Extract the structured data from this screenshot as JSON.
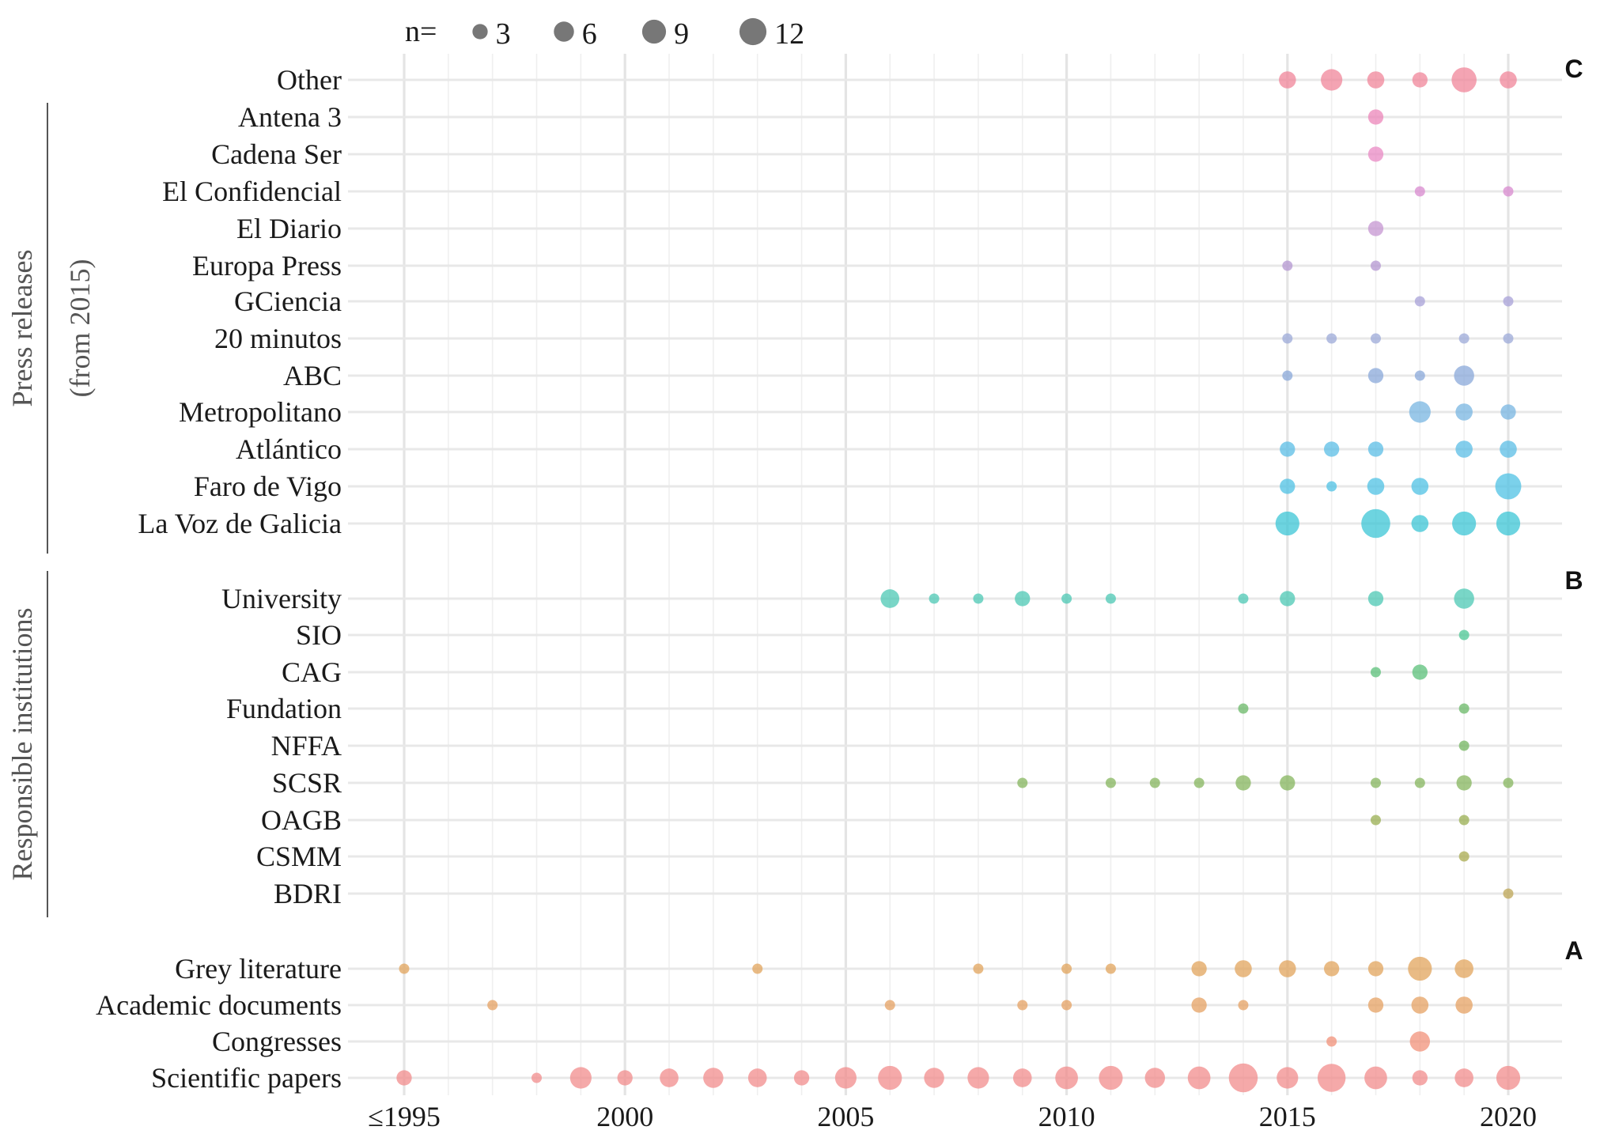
{
  "chart_data": {
    "type": "scatter",
    "subtype": "bubble",
    "legend": {
      "prefix": "n=",
      "sizes": [
        3,
        6,
        9,
        12
      ],
      "placement": "top-left"
    },
    "x_ticks": [
      {
        "value": 1995,
        "label": "≤1995"
      },
      {
        "value": 2000,
        "label": "2000"
      },
      {
        "value": 2005,
        "label": "2005"
      },
      {
        "value": 2010,
        "label": "2010"
      },
      {
        "value": 2015,
        "label": "2015"
      },
      {
        "value": 2020,
        "label": "2020"
      }
    ],
    "xlim": [
      1995,
      2020
    ],
    "grid": true,
    "groups": [
      {
        "name": "Press releases",
        "subtitle": "(from 2015)",
        "panel": "C"
      },
      {
        "name": "Responsible institutions",
        "subtitle": "",
        "panel": "B"
      },
      {
        "name": "",
        "subtitle": "",
        "panel": "A"
      }
    ],
    "series": [
      {
        "name": "Other",
        "group": 0,
        "color": "#f0869a",
        "points": [
          [
            2015,
            4
          ],
          [
            2016,
            7
          ],
          [
            2017,
            4
          ],
          [
            2018,
            3
          ],
          [
            2019,
            10
          ],
          [
            2020,
            4
          ]
        ]
      },
      {
        "name": "Antena 3",
        "group": 0,
        "color": "#ec86b9",
        "points": [
          [
            2017,
            3
          ]
        ]
      },
      {
        "name": "Cadena Ser",
        "group": 0,
        "color": "#e98ac4",
        "points": [
          [
            2017,
            3
          ]
        ]
      },
      {
        "name": "El Confidencial",
        "group": 0,
        "color": "#d889cf",
        "points": [
          [
            2018,
            1
          ],
          [
            2020,
            1
          ]
        ]
      },
      {
        "name": "El Diario",
        "group": 0,
        "color": "#c696d2",
        "points": [
          [
            2017,
            3
          ]
        ]
      },
      {
        "name": "Europa Press",
        "group": 0,
        "color": "#b497d2",
        "points": [
          [
            2015,
            1
          ],
          [
            2017,
            1
          ]
        ]
      },
      {
        "name": "GCiencia",
        "group": 0,
        "color": "#a8a2d8",
        "points": [
          [
            2018,
            1
          ],
          [
            2020,
            1
          ]
        ]
      },
      {
        "name": "20 minutos",
        "group": 0,
        "color": "#9caad8",
        "points": [
          [
            2015,
            1
          ],
          [
            2016,
            1
          ],
          [
            2017,
            1
          ],
          [
            2019,
            1
          ],
          [
            2020,
            1
          ]
        ]
      },
      {
        "name": "ABC",
        "group": 0,
        "color": "#8aa8da",
        "points": [
          [
            2015,
            1
          ],
          [
            2017,
            3
          ],
          [
            2018,
            1
          ],
          [
            2019,
            6
          ]
        ]
      },
      {
        "name": "Metropolitano",
        "group": 0,
        "color": "#78b6e2",
        "points": [
          [
            2018,
            7
          ],
          [
            2019,
            4
          ],
          [
            2020,
            3
          ]
        ]
      },
      {
        "name": "Atlántico",
        "group": 0,
        "color": "#5bbde6",
        "points": [
          [
            2015,
            3
          ],
          [
            2016,
            3
          ],
          [
            2017,
            3
          ],
          [
            2019,
            4
          ],
          [
            2020,
            4
          ]
        ]
      },
      {
        "name": "Faro de Vigo",
        "group": 0,
        "color": "#4fc2e4",
        "points": [
          [
            2015,
            3
          ],
          [
            2016,
            1
          ],
          [
            2017,
            4
          ],
          [
            2018,
            4
          ],
          [
            2020,
            11
          ]
        ]
      },
      {
        "name": "La Voz de Galicia",
        "group": 0,
        "color": "#3cc6d6",
        "points": [
          [
            2015,
            9
          ],
          [
            2017,
            14
          ],
          [
            2018,
            4
          ],
          [
            2019,
            9
          ],
          [
            2020,
            9
          ]
        ]
      },
      {
        "name": "University",
        "group": 1,
        "color": "#4cc8b4",
        "points": [
          [
            2006,
            5
          ],
          [
            2007,
            1
          ],
          [
            2008,
            1
          ],
          [
            2009,
            3
          ],
          [
            2010,
            1
          ],
          [
            2011,
            1
          ],
          [
            2014,
            1
          ],
          [
            2015,
            3
          ],
          [
            2017,
            3
          ],
          [
            2019,
            6
          ]
        ]
      },
      {
        "name": "SIO",
        "group": 1,
        "color": "#4cc896",
        "points": [
          [
            2019,
            1
          ]
        ]
      },
      {
        "name": "CAG",
        "group": 1,
        "color": "#5bc07a",
        "points": [
          [
            2017,
            1
          ],
          [
            2018,
            3
          ]
        ]
      },
      {
        "name": "Fundation",
        "group": 1,
        "color": "#6ab867",
        "points": [
          [
            2014,
            1
          ],
          [
            2019,
            1
          ]
        ]
      },
      {
        "name": "NFFA",
        "group": 1,
        "color": "#73b65f",
        "points": [
          [
            2019,
            1
          ]
        ]
      },
      {
        "name": "SCSR",
        "group": 1,
        "color": "#86b55e",
        "points": [
          [
            2009,
            1
          ],
          [
            2011,
            1
          ],
          [
            2012,
            1
          ],
          [
            2013,
            1
          ],
          [
            2014,
            3
          ],
          [
            2015,
            3
          ],
          [
            2017,
            1
          ],
          [
            2018,
            1
          ],
          [
            2019,
            3
          ],
          [
            2020,
            1
          ]
        ]
      },
      {
        "name": "OAGB",
        "group": 1,
        "color": "#9aaf52",
        "points": [
          [
            2017,
            1
          ],
          [
            2019,
            1
          ]
        ]
      },
      {
        "name": "CSMM",
        "group": 1,
        "color": "#aaab4f",
        "points": [
          [
            2019,
            1
          ]
        ]
      },
      {
        "name": "BDRI",
        "group": 1,
        "color": "#bda655",
        "points": [
          [
            2020,
            1
          ]
        ]
      },
      {
        "name": "Grey literature",
        "group": 2,
        "color": "#e2a45c",
        "points": [
          [
            1995,
            1
          ],
          [
            2003,
            1
          ],
          [
            2008,
            1
          ],
          [
            2010,
            1
          ],
          [
            2011,
            1
          ],
          [
            2013,
            3
          ],
          [
            2014,
            4
          ],
          [
            2015,
            4
          ],
          [
            2016,
            3
          ],
          [
            2017,
            3
          ],
          [
            2018,
            9
          ],
          [
            2019,
            5
          ]
        ]
      },
      {
        "name": "Academic documents",
        "group": 2,
        "color": "#e6a263",
        "points": [
          [
            1997,
            1
          ],
          [
            2006,
            1
          ],
          [
            2009,
            1
          ],
          [
            2010,
            1
          ],
          [
            2013,
            3
          ],
          [
            2014,
            1
          ],
          [
            2017,
            3
          ],
          [
            2018,
            4
          ],
          [
            2019,
            4
          ]
        ]
      },
      {
        "name": "Congresses",
        "group": 2,
        "color": "#f29279",
        "points": [
          [
            2016,
            1
          ],
          [
            2018,
            6
          ]
        ]
      },
      {
        "name": "Scientific papers",
        "group": 2,
        "color": "#f28c8c",
        "points": [
          [
            1995,
            3
          ],
          [
            1998,
            1
          ],
          [
            1999,
            7
          ],
          [
            2000,
            3
          ],
          [
            2001,
            5
          ],
          [
            2002,
            6
          ],
          [
            2003,
            5
          ],
          [
            2004,
            3
          ],
          [
            2005,
            7
          ],
          [
            2006,
            9
          ],
          [
            2007,
            6
          ],
          [
            2008,
            7
          ],
          [
            2009,
            5
          ],
          [
            2010,
            8
          ],
          [
            2011,
            9
          ],
          [
            2012,
            6
          ],
          [
            2013,
            8
          ],
          [
            2014,
            14
          ],
          [
            2015,
            7
          ],
          [
            2016,
            13
          ],
          [
            2017,
            8
          ],
          [
            2018,
            3
          ],
          [
            2019,
            5
          ],
          [
            2020,
            9
          ]
        ]
      }
    ]
  }
}
